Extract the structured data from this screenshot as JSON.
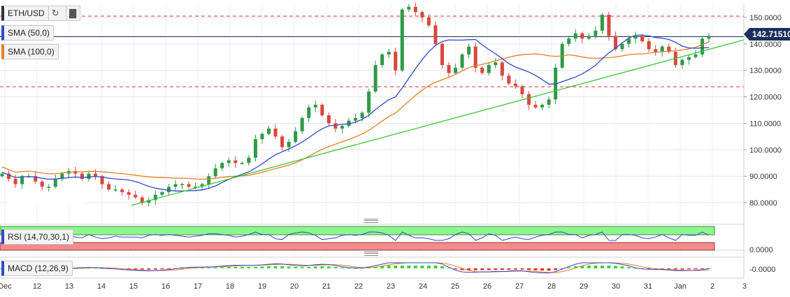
{
  "symbol": "ETH/USD",
  "indicators": {
    "sma50": "SMA (50,0)",
    "sma100": "SMA (100,0)",
    "rsi": "RSI (14,70,30,1)",
    "macd": "MACD (12,26,9)"
  },
  "icons": {
    "refresh": "refresh-icon",
    "chart": "bar-chart-icon"
  },
  "colors": {
    "up": "#2e9a47",
    "down": "#d9463d",
    "sma50": "#3148c8",
    "sma100": "#e67e22",
    "trendline": "#3cc43c",
    "resistance": "#e8474a",
    "price_line": "#1b2f5c",
    "rsi_overbought": "#8ef58e",
    "rsi_oversold": "#f28b8b",
    "rsi_line": "#3148c8"
  },
  "price_label": "142.71510",
  "rsi_axis_label": "0.0000",
  "macd_axis_label": "-0.0000",
  "chart_data": {
    "type": "candlestick",
    "title": "",
    "y_ticks": [
      "150.0000",
      "140.0000",
      "130.0000",
      "120.0000",
      "110.0000",
      "100.0000",
      "90.0000",
      "80.0000"
    ],
    "ylim": [
      75,
      155
    ],
    "x_ticks": [
      "Dec",
      "12",
      "13",
      "14",
      "15",
      "16",
      "17",
      "18",
      "19",
      "20",
      "21",
      "22",
      "23",
      "24",
      "25",
      "26",
      "27",
      "28",
      "29",
      "30",
      "31",
      "Jan",
      "2",
      "3"
    ],
    "current_price": 142.7151,
    "horizontal_levels": [
      150.5,
      123.8
    ],
    "trendline": {
      "from": [
        15,
        79
      ],
      "to": [
        3.4,
        141.5
      ]
    },
    "ohlc_path": [
      91,
      89,
      87,
      90,
      90,
      88,
      86,
      86,
      89,
      91,
      92,
      91,
      89,
      91,
      90,
      87,
      85,
      85,
      84,
      83,
      82,
      80,
      81,
      83,
      84,
      86,
      87,
      87,
      86,
      86,
      87,
      90,
      93,
      95,
      96,
      95,
      95,
      97,
      104,
      106,
      108,
      105,
      101,
      103,
      107,
      112,
      116,
      117,
      113,
      110,
      108,
      109,
      111,
      112,
      114,
      122,
      132,
      136,
      137,
      130,
      153,
      154,
      152,
      150,
      147,
      140,
      132,
      129,
      131,
      136,
      139,
      131,
      129,
      132,
      133,
      128,
      125,
      124,
      121,
      117,
      116,
      117,
      119,
      131,
      140,
      142,
      144,
      142,
      143,
      145,
      151,
      143,
      138,
      140,
      142,
      143,
      141,
      138,
      137,
      139,
      137,
      132,
      134,
      135,
      136,
      142,
      143
    ]
  }
}
